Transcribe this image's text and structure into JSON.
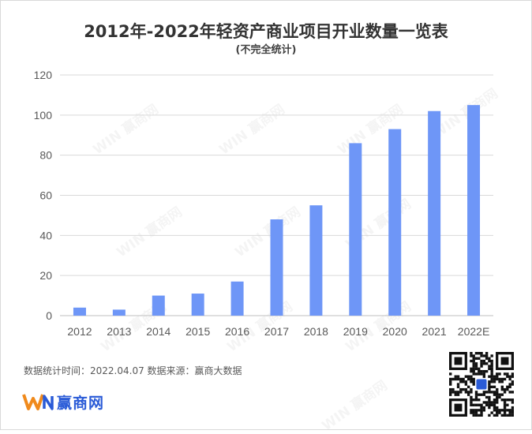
{
  "title": "2012年-2022年轻资产商业项目开业数量一览表",
  "subtitle": "(不完全统计)",
  "chart_data": {
    "type": "bar",
    "categories": [
      "2012",
      "2013",
      "2014",
      "2015",
      "2016",
      "2017",
      "2018",
      "2019",
      "2020",
      "2021",
      "2022E"
    ],
    "values": [
      4,
      3,
      10,
      11,
      17,
      48,
      55,
      86,
      93,
      102,
      105
    ],
    "ylim": [
      0,
      120
    ],
    "yticks": [
      0,
      20,
      40,
      60,
      80,
      100,
      120
    ],
    "grid": true,
    "bar_color": "#6e96f7"
  },
  "footer": {
    "note": "数据统计时间：2022.04.07  数据来源：赢商大数据"
  },
  "logo": {
    "text": "赢商网",
    "colors": {
      "orange": "#f08a1c",
      "blue": "#2a5bd7"
    }
  },
  "watermark": {
    "text": "赢商网"
  },
  "qr": {
    "icon": "qr-code-icon"
  }
}
